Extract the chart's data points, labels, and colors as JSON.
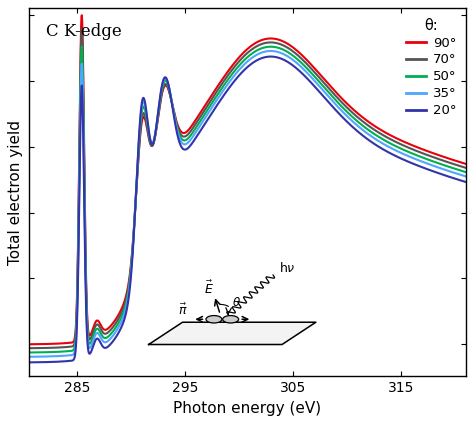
{
  "title": "C K-edge",
  "xlabel": "Photon energy (eV)",
  "ylabel": "Total electron yield",
  "xlim": [
    280.5,
    321
  ],
  "xticks": [
    285,
    295,
    305,
    315
  ],
  "series": [
    {
      "label": "90°",
      "color": "#e8000a"
    },
    {
      "label": "70°",
      "color": "#555555"
    },
    {
      "label": "50°",
      "color": "#00b050"
    },
    {
      "label": "35°",
      "color": "#4da6ff"
    },
    {
      "label": "20°",
      "color": "#3333aa"
    }
  ],
  "legend_title": "θ:",
  "background_color": "#ffffff",
  "linewidth": 1.5
}
